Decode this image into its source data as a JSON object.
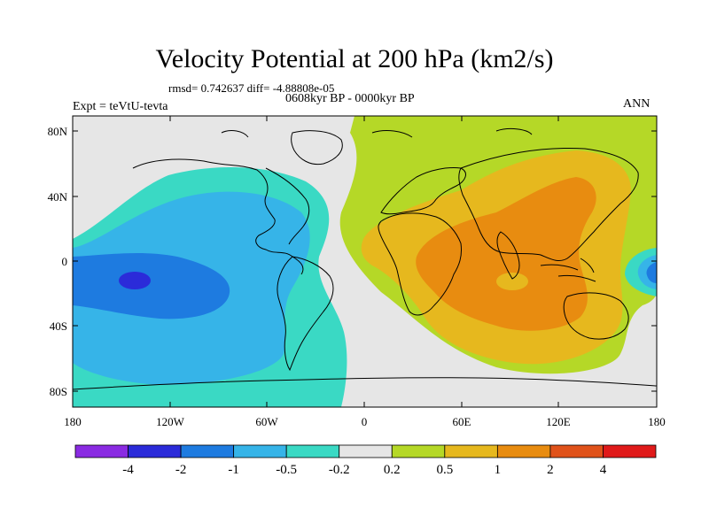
{
  "title": "Velocity Potential at 200 hPa (km2/s)",
  "stats_line": "rmsd= 0.742637 diff= -4.88808e-05",
  "period_line": "0608kyr BP - 0000kyr BP",
  "experiment": "Expt = teVtU-tevta",
  "season": "ANN",
  "latitude_labels": [
    "80N",
    "40N",
    "0",
    "40S",
    "80S"
  ],
  "longitude_labels": [
    "180",
    "120W",
    "60W",
    "0",
    "60E",
    "120E",
    "180"
  ],
  "colorbar": {
    "labels": [
      "-4",
      "-2",
      "-1",
      "-0.5",
      "-0.2",
      "0.2",
      "0.5",
      "1",
      "2",
      "4"
    ],
    "colors": [
      "#8a2be2",
      "#2b2bd9",
      "#1e7be0",
      "#36b4e8",
      "#3ad9c4",
      "#e6e6e6",
      "#b5d827",
      "#e6b81e",
      "#e88c10",
      "#e0521a",
      "#e01a1a"
    ]
  },
  "fill_colors": {
    "deep_blue": "#2b2bd9",
    "blue": "#1e7be0",
    "light_blue": "#36b4e8",
    "teal": "#3ad9c4",
    "neutral": "#e6e6e6",
    "green": "#b5d827",
    "yellow": "#e6b81e",
    "orange": "#e88c10"
  }
}
